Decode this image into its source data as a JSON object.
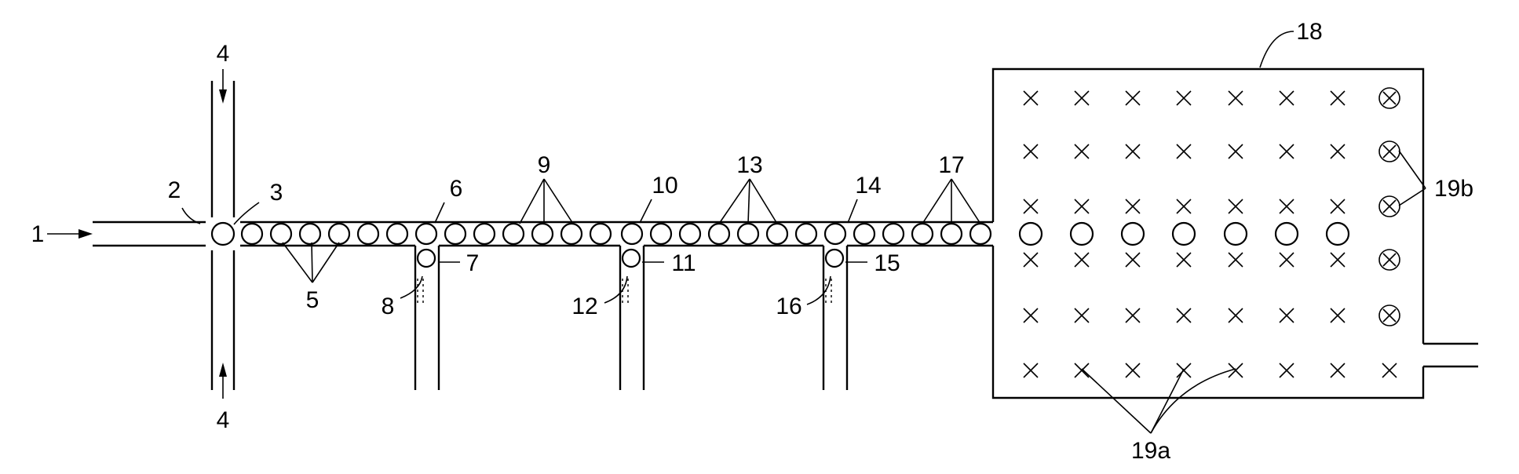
{
  "labels": {
    "inlet": "1",
    "junction_left": "2",
    "junction_right": "3",
    "side_flow": "4",
    "droplets_a": "5",
    "channel_a": "6",
    "drop_a": "7",
    "branch_a": "8",
    "droplets_b": "9",
    "channel_b": "10",
    "drop_b": "11",
    "branch_b": "12",
    "droplets_c": "13",
    "channel_c": "14",
    "drop_c": "15",
    "branch_c": "16",
    "droplets_d": "17",
    "chamber": "18",
    "marks_a": "19a",
    "marks_b": "19b"
  }
}
